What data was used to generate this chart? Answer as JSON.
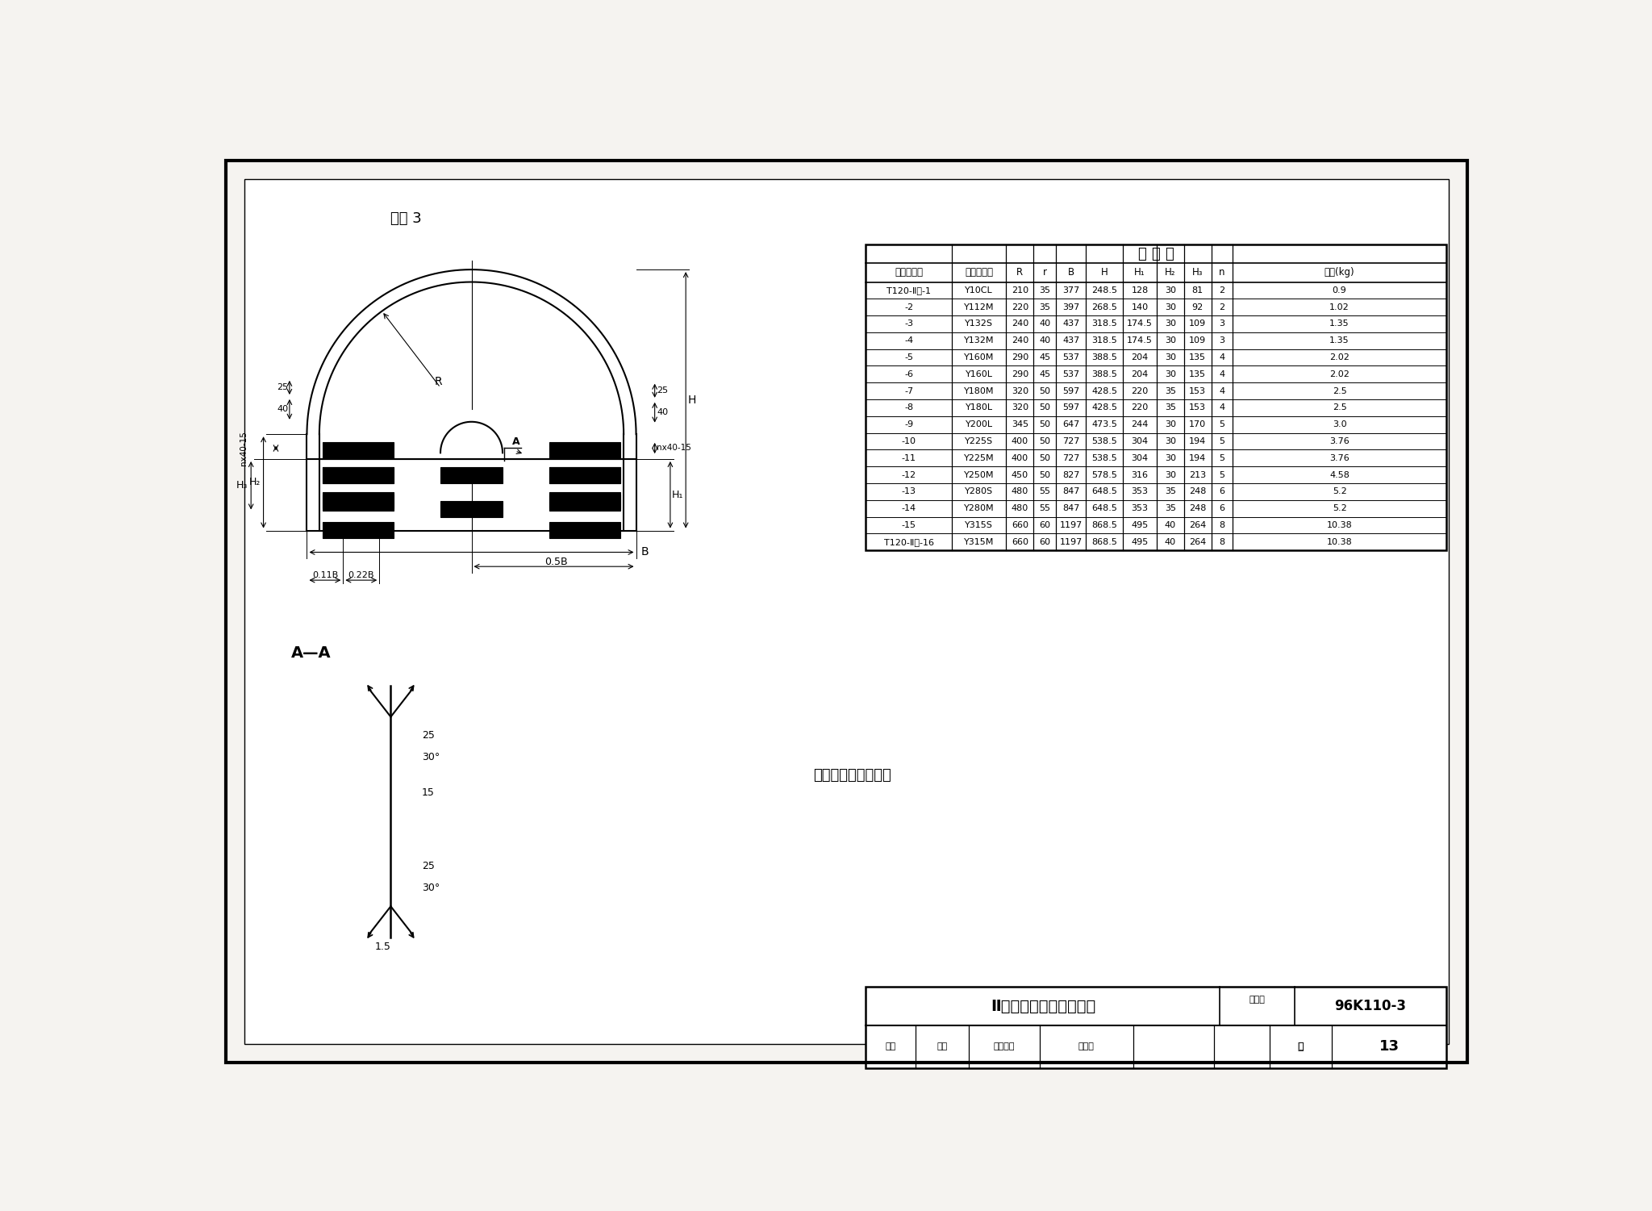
{
  "bg_color": "#f5f3f0",
  "title_text": "尺 寸 表",
  "table_header": [
    "防雨罩编号",
    "电动机型号",
    "R",
    "r",
    "B",
    "H",
    "H₁",
    "H₂",
    "H₃",
    "n",
    "质量(kg)"
  ],
  "table_rows": [
    [
      "T120-Ⅱ型-1",
      "Y10CL",
      "210",
      "35",
      "377",
      "248.5",
      "128",
      "30",
      "81",
      "2",
      "0.9"
    ],
    [
      "-2",
      "Y112M",
      "220",
      "35",
      "397",
      "268.5",
      "140",
      "30",
      "92",
      "2",
      "1.02"
    ],
    [
      "-3",
      "Y132S",
      "240",
      "40",
      "437",
      "318.5",
      "174.5",
      "30",
      "109",
      "3",
      "1.35"
    ],
    [
      "-4",
      "Y132M",
      "240",
      "40",
      "437",
      "318.5",
      "174.5",
      "30",
      "109",
      "3",
      "1.35"
    ],
    [
      "-5",
      "Y160M",
      "290",
      "45",
      "537",
      "388.5",
      "204",
      "30",
      "135",
      "4",
      "2.02"
    ],
    [
      "-6",
      "Y160L",
      "290",
      "45",
      "537",
      "388.5",
      "204",
      "30",
      "135",
      "4",
      "2.02"
    ],
    [
      "-7",
      "Y180M",
      "320",
      "50",
      "597",
      "428.5",
      "220",
      "35",
      "153",
      "4",
      "2.5"
    ],
    [
      "-8",
      "Y180L",
      "320",
      "50",
      "597",
      "428.5",
      "220",
      "35",
      "153",
      "4",
      "2.5"
    ],
    [
      "-9",
      "Y200L",
      "345",
      "50",
      "647",
      "473.5",
      "244",
      "30",
      "170",
      "5",
      "3.0"
    ],
    [
      "-10",
      "Y225S",
      "400",
      "50",
      "727",
      "538.5",
      "304",
      "30",
      "194",
      "5",
      "3.76"
    ],
    [
      "-11",
      "Y225M",
      "400",
      "50",
      "727",
      "538.5",
      "304",
      "30",
      "194",
      "5",
      "3.76"
    ],
    [
      "-12",
      "Y250M",
      "450",
      "50",
      "827",
      "578.5",
      "316",
      "30",
      "213",
      "5",
      "4.58"
    ],
    [
      "-13",
      "Y280S",
      "480",
      "55",
      "847",
      "648.5",
      "353",
      "35",
      "248",
      "6",
      "5.2"
    ],
    [
      "-14",
      "Y280M",
      "480",
      "55",
      "847",
      "648.5",
      "353",
      "35",
      "248",
      "6",
      "5.2"
    ],
    [
      "-15",
      "Y315S",
      "660",
      "60",
      "1197",
      "868.5",
      "495",
      "40",
      "264",
      "8",
      "10.38"
    ],
    [
      "T120-Ⅱ型-16",
      "Y315M",
      "660",
      "60",
      "1197",
      "868.5",
      "495",
      "40",
      "264",
      "8",
      "10.38"
    ]
  ],
  "bottom_title": "Ⅱ型电动机防雨罩零件图",
  "bottom_tuhao_label": "图集号",
  "bottom_tuhao_val": "96K110-3",
  "bottom_shenhe": "审核",
  "bottom_jiaodui": "校对",
  "bottom_zhitu": "针通设计",
  "bottom_qiding": "起定华",
  "bottom_ye": "页",
  "bottom_page": "13",
  "note_text": "所有加工边去除毛刺",
  "part_label": "件号 3",
  "section_label": "A—A"
}
